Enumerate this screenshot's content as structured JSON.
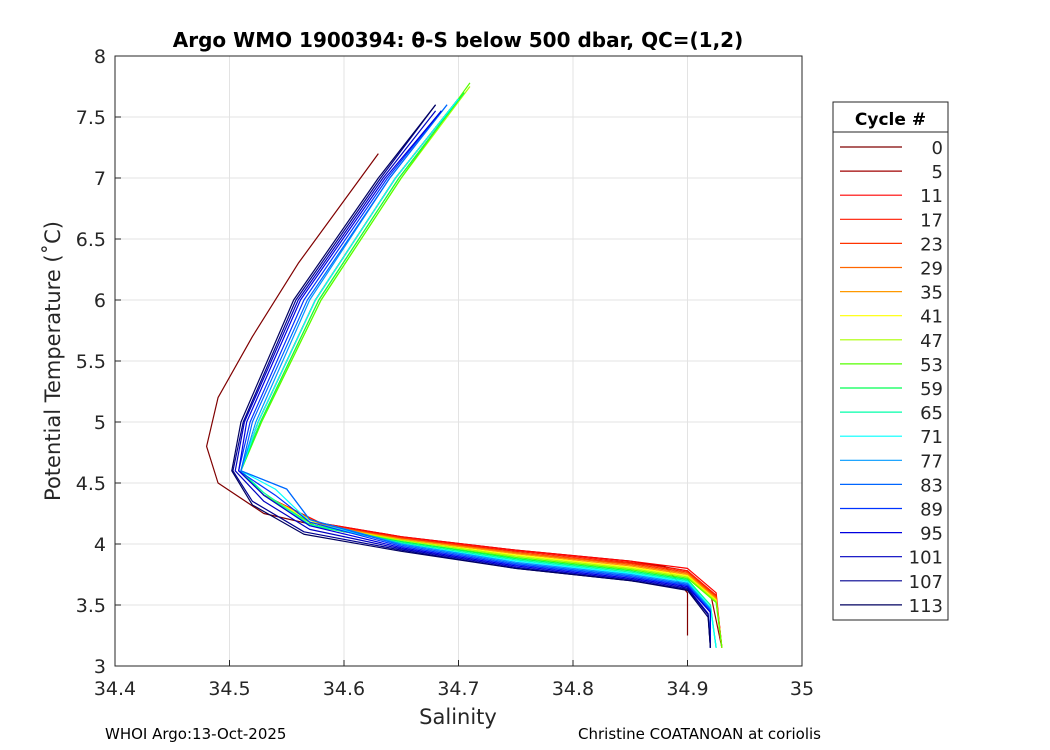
{
  "chart_data": {
    "type": "line",
    "title": "Argo WMO 1900394: θ-S below 500 dbar,  QC=(1,2)",
    "xlabel": "Salinity",
    "ylabel": "Potential Temperature (˚C)",
    "xlim": [
      34.4,
      35
    ],
    "ylim": [
      3,
      8
    ],
    "xticks": [
      "34.4",
      "34.5",
      "34.6",
      "34.7",
      "34.8",
      "34.9",
      "35"
    ],
    "yticks": [
      "3",
      "3.5",
      "4",
      "4.5",
      "5",
      "5.5",
      "6",
      "6.5",
      "7",
      "7.5",
      "8"
    ],
    "grid": true,
    "legend": {
      "title": "Cycle #",
      "placement": "right"
    },
    "series": [
      {
        "name": "0",
        "color": "#800000",
        "points": [
          [
            34.63,
            7.2
          ],
          [
            34.56,
            6.3
          ],
          [
            34.52,
            5.7
          ],
          [
            34.49,
            5.2
          ],
          [
            34.48,
            4.8
          ],
          [
            34.49,
            4.5
          ],
          [
            34.53,
            4.25
          ],
          [
            34.6,
            4.1
          ],
          [
            34.7,
            3.98
          ],
          [
            34.8,
            3.88
          ],
          [
            34.88,
            3.82
          ],
          [
            34.9,
            3.6
          ],
          [
            34.9,
            3.25
          ]
        ]
      },
      {
        "name": "5",
        "color": "#a00000",
        "points": [
          [
            34.7,
            7.65
          ],
          [
            34.645,
            7.0
          ],
          [
            34.575,
            6.0
          ],
          [
            34.525,
            5.0
          ],
          [
            34.51,
            4.6
          ],
          [
            34.53,
            4.4
          ],
          [
            34.58,
            4.17
          ],
          [
            34.65,
            4.06
          ],
          [
            34.75,
            3.95
          ],
          [
            34.85,
            3.86
          ],
          [
            34.9,
            3.78
          ],
          [
            34.92,
            3.6
          ],
          [
            34.93,
            3.15
          ]
        ]
      },
      {
        "name": "11",
        "color": "#ff0000",
        "points": [
          [
            34.7,
            7.65
          ],
          [
            34.645,
            7.0
          ],
          [
            34.575,
            6.0
          ],
          [
            34.525,
            5.0
          ],
          [
            34.51,
            4.6
          ],
          [
            34.53,
            4.4
          ],
          [
            34.58,
            4.17
          ],
          [
            34.65,
            4.06
          ],
          [
            34.75,
            3.95
          ],
          [
            34.85,
            3.86
          ],
          [
            34.9,
            3.8
          ],
          [
            34.925,
            3.6
          ],
          [
            34.93,
            3.15
          ]
        ]
      },
      {
        "name": "17",
        "color": "#ff1a00",
        "points": [
          [
            34.7,
            7.65
          ],
          [
            34.645,
            7.0
          ],
          [
            34.575,
            6.0
          ],
          [
            34.525,
            5.0
          ],
          [
            34.51,
            4.6
          ],
          [
            34.53,
            4.4
          ],
          [
            34.58,
            4.16
          ],
          [
            34.65,
            4.05
          ],
          [
            34.75,
            3.94
          ],
          [
            34.85,
            3.85
          ],
          [
            34.9,
            3.78
          ],
          [
            34.925,
            3.58
          ],
          [
            34.93,
            3.15
          ]
        ]
      },
      {
        "name": "23",
        "color": "#ff3300",
        "points": [
          [
            34.7,
            7.65
          ],
          [
            34.645,
            7.0
          ],
          [
            34.575,
            6.0
          ],
          [
            34.525,
            5.0
          ],
          [
            34.51,
            4.6
          ],
          [
            34.53,
            4.4
          ],
          [
            34.58,
            4.16
          ],
          [
            34.65,
            4.05
          ],
          [
            34.75,
            3.93
          ],
          [
            34.85,
            3.84
          ],
          [
            34.9,
            3.77
          ],
          [
            34.925,
            3.57
          ],
          [
            34.93,
            3.15
          ]
        ]
      },
      {
        "name": "29",
        "color": "#ff6600",
        "points": [
          [
            34.7,
            7.65
          ],
          [
            34.645,
            7.0
          ],
          [
            34.575,
            6.0
          ],
          [
            34.525,
            5.0
          ],
          [
            34.51,
            4.6
          ],
          [
            34.53,
            4.4
          ],
          [
            34.58,
            4.16
          ],
          [
            34.65,
            4.04
          ],
          [
            34.75,
            3.93
          ],
          [
            34.85,
            3.83
          ],
          [
            34.9,
            3.76
          ],
          [
            34.925,
            3.56
          ],
          [
            34.93,
            3.15
          ]
        ]
      },
      {
        "name": "35",
        "color": "#ff9900",
        "points": [
          [
            34.705,
            7.7
          ],
          [
            34.648,
            7.0
          ],
          [
            34.578,
            6.0
          ],
          [
            34.527,
            5.0
          ],
          [
            34.51,
            4.6
          ],
          [
            34.53,
            4.4
          ],
          [
            34.58,
            4.15
          ],
          [
            34.65,
            4.04
          ],
          [
            34.75,
            3.92
          ],
          [
            34.85,
            3.82
          ],
          [
            34.9,
            3.75
          ],
          [
            34.925,
            3.55
          ],
          [
            34.93,
            3.15
          ]
        ]
      },
      {
        "name": "41",
        "color": "#ffff00",
        "points": [
          [
            34.705,
            7.7
          ],
          [
            34.648,
            7.0
          ],
          [
            34.578,
            6.0
          ],
          [
            34.527,
            5.0
          ],
          [
            34.51,
            4.6
          ],
          [
            34.53,
            4.4
          ],
          [
            34.58,
            4.15
          ],
          [
            34.65,
            4.03
          ],
          [
            34.75,
            3.91
          ],
          [
            34.85,
            3.81
          ],
          [
            34.9,
            3.74
          ],
          [
            34.925,
            3.54
          ],
          [
            34.93,
            3.15
          ]
        ]
      },
      {
        "name": "47",
        "color": "#aaff00",
        "points": [
          [
            34.71,
            7.75
          ],
          [
            34.65,
            7.0
          ],
          [
            34.58,
            6.0
          ],
          [
            34.528,
            5.0
          ],
          [
            34.51,
            4.6
          ],
          [
            34.53,
            4.4
          ],
          [
            34.575,
            4.15
          ],
          [
            34.65,
            4.03
          ],
          [
            34.75,
            3.9
          ],
          [
            34.85,
            3.8
          ],
          [
            34.9,
            3.73
          ],
          [
            34.925,
            3.53
          ],
          [
            34.93,
            3.15
          ]
        ]
      },
      {
        "name": "53",
        "color": "#55ff00",
        "points": [
          [
            34.71,
            7.78
          ],
          [
            34.65,
            7.0
          ],
          [
            34.58,
            6.0
          ],
          [
            34.528,
            5.0
          ],
          [
            34.51,
            4.6
          ],
          [
            34.53,
            4.4
          ],
          [
            34.575,
            4.15
          ],
          [
            34.65,
            4.02
          ],
          [
            34.75,
            3.89
          ],
          [
            34.85,
            3.79
          ],
          [
            34.9,
            3.72
          ],
          [
            34.925,
            3.52
          ],
          [
            34.93,
            3.15
          ]
        ]
      },
      {
        "name": "59",
        "color": "#00ff55",
        "points": [
          [
            34.705,
            7.7
          ],
          [
            34.648,
            7.0
          ],
          [
            34.578,
            6.0
          ],
          [
            34.527,
            5.0
          ],
          [
            34.51,
            4.6
          ],
          [
            34.53,
            4.4
          ],
          [
            34.57,
            4.15
          ],
          [
            34.65,
            4.02
          ],
          [
            34.75,
            3.88
          ],
          [
            34.85,
            3.78
          ],
          [
            34.9,
            3.71
          ],
          [
            34.92,
            3.5
          ],
          [
            34.925,
            3.15
          ]
        ]
      },
      {
        "name": "65",
        "color": "#00ffaa",
        "points": [
          [
            34.7,
            7.65
          ],
          [
            34.645,
            7.0
          ],
          [
            34.575,
            6.0
          ],
          [
            34.525,
            5.0
          ],
          [
            34.51,
            4.6
          ],
          [
            34.53,
            4.42
          ],
          [
            34.57,
            4.16
          ],
          [
            34.65,
            4.01
          ],
          [
            34.75,
            3.87
          ],
          [
            34.85,
            3.77
          ],
          [
            34.9,
            3.7
          ],
          [
            34.92,
            3.5
          ],
          [
            34.925,
            3.15
          ]
        ]
      },
      {
        "name": "71",
        "color": "#00ffff",
        "points": [
          [
            34.7,
            7.65
          ],
          [
            34.645,
            7.0
          ],
          [
            34.575,
            6.0
          ],
          [
            34.525,
            5.0
          ],
          [
            34.51,
            4.6
          ],
          [
            34.54,
            4.45
          ],
          [
            34.57,
            4.18
          ],
          [
            34.65,
            4.0
          ],
          [
            34.75,
            3.86
          ],
          [
            34.85,
            3.76
          ],
          [
            34.9,
            3.69
          ],
          [
            34.92,
            3.48
          ],
          [
            34.925,
            3.15
          ]
        ]
      },
      {
        "name": "77",
        "color": "#0099ff",
        "points": [
          [
            34.69,
            7.6
          ],
          [
            34.64,
            7.0
          ],
          [
            34.57,
            6.0
          ],
          [
            34.523,
            5.0
          ],
          [
            34.51,
            4.6
          ],
          [
            34.55,
            4.45
          ],
          [
            34.57,
            4.2
          ],
          [
            34.65,
            4.0
          ],
          [
            34.75,
            3.85
          ],
          [
            34.85,
            3.75
          ],
          [
            34.9,
            3.68
          ],
          [
            34.92,
            3.47
          ],
          [
            34.92,
            3.15
          ]
        ]
      },
      {
        "name": "83",
        "color": "#0066ff",
        "points": [
          [
            34.69,
            7.6
          ],
          [
            34.64,
            7.0
          ],
          [
            34.568,
            6.0
          ],
          [
            34.52,
            5.0
          ],
          [
            34.51,
            4.6
          ],
          [
            34.55,
            4.45
          ],
          [
            34.57,
            4.2
          ],
          [
            34.65,
            3.99
          ],
          [
            34.75,
            3.84
          ],
          [
            34.85,
            3.74
          ],
          [
            34.9,
            3.67
          ],
          [
            34.92,
            3.46
          ],
          [
            34.92,
            3.15
          ]
        ]
      },
      {
        "name": "89",
        "color": "#0033ff",
        "points": [
          [
            34.685,
            7.55
          ],
          [
            34.638,
            7.0
          ],
          [
            34.565,
            6.0
          ],
          [
            34.518,
            5.0
          ],
          [
            34.508,
            4.6
          ],
          [
            34.54,
            4.4
          ],
          [
            34.57,
            4.18
          ],
          [
            34.65,
            3.98
          ],
          [
            34.75,
            3.83
          ],
          [
            34.85,
            3.73
          ],
          [
            34.9,
            3.66
          ],
          [
            34.92,
            3.45
          ],
          [
            34.92,
            3.15
          ]
        ]
      },
      {
        "name": "95",
        "color": "#0000e0",
        "points": [
          [
            34.685,
            7.55
          ],
          [
            34.636,
            7.0
          ],
          [
            34.562,
            6.0
          ],
          [
            34.515,
            5.0
          ],
          [
            34.508,
            4.6
          ],
          [
            34.53,
            4.4
          ],
          [
            34.57,
            4.15
          ],
          [
            34.65,
            3.97
          ],
          [
            34.75,
            3.82
          ],
          [
            34.85,
            3.72
          ],
          [
            34.9,
            3.65
          ],
          [
            34.92,
            3.44
          ],
          [
            34.92,
            3.15
          ]
        ]
      },
      {
        "name": "101",
        "color": "#0000c0",
        "points": [
          [
            34.68,
            7.55
          ],
          [
            34.634,
            7.0
          ],
          [
            34.56,
            6.0
          ],
          [
            34.513,
            5.0
          ],
          [
            34.505,
            4.6
          ],
          [
            34.53,
            4.35
          ],
          [
            34.57,
            4.12
          ],
          [
            34.65,
            3.96
          ],
          [
            34.75,
            3.81
          ],
          [
            34.85,
            3.71
          ],
          [
            34.9,
            3.64
          ],
          [
            34.918,
            3.43
          ],
          [
            34.92,
            3.15
          ]
        ]
      },
      {
        "name": "107",
        "color": "#000090",
        "points": [
          [
            34.68,
            7.6
          ],
          [
            34.632,
            7.0
          ],
          [
            34.558,
            6.0
          ],
          [
            34.512,
            5.0
          ],
          [
            34.503,
            4.6
          ],
          [
            34.52,
            4.35
          ],
          [
            34.565,
            4.1
          ],
          [
            34.65,
            3.95
          ],
          [
            34.75,
            3.8
          ],
          [
            34.85,
            3.7
          ],
          [
            34.9,
            3.63
          ],
          [
            34.918,
            3.42
          ],
          [
            34.92,
            3.15
          ]
        ]
      },
      {
        "name": "113",
        "color": "#000060",
        "points": [
          [
            34.68,
            7.6
          ],
          [
            34.63,
            7.0
          ],
          [
            34.556,
            6.0
          ],
          [
            34.51,
            5.0
          ],
          [
            34.502,
            4.6
          ],
          [
            34.52,
            4.32
          ],
          [
            34.565,
            4.08
          ],
          [
            34.65,
            3.94
          ],
          [
            34.75,
            3.8
          ],
          [
            34.85,
            3.7
          ],
          [
            34.9,
            3.62
          ],
          [
            34.918,
            3.4
          ],
          [
            34.92,
            3.15
          ]
        ]
      }
    ]
  },
  "footer": {
    "left": "WHOI Argo:13-Oct-2025",
    "right": "Christine COATANOAN at coriolis"
  }
}
